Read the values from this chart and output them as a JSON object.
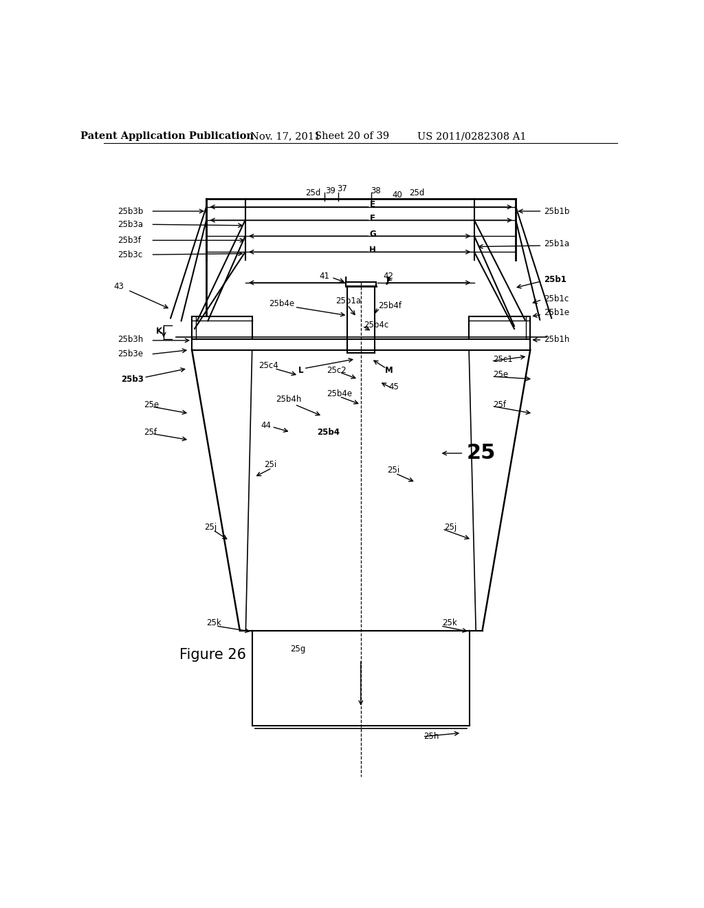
{
  "title": "Patent Application Publication",
  "date": "Nov. 17, 2011",
  "sheet": "Sheet 20 of 39",
  "patent_num": "US 2011/0282308 A1",
  "fig_label": "Figure 26",
  "background_color": "#ffffff",
  "line_color": "#000000",
  "header_fontsize": 10.5,
  "label_fontsize": 8.5,
  "fig26_fontsize": 15
}
